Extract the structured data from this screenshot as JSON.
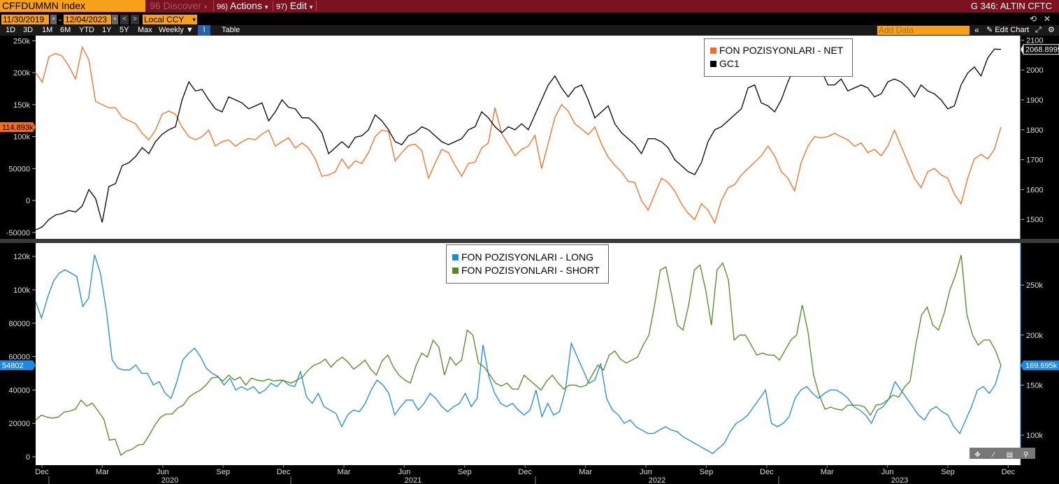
{
  "header": {
    "ticker": "CFFDUMMN Index",
    "discover_label": "Discover",
    "discover_num": "96",
    "actions_num": "96)",
    "actions_label": "Actions",
    "edit_num": "97)",
    "edit_label": "Edit",
    "window_title": "G 346: ALTIN CFTC"
  },
  "controls": {
    "start_date": "11/30/2019",
    "end_date": "12/04/2023",
    "currency": "Local CCY",
    "periods": [
      "1D",
      "3D",
      "1M",
      "6M",
      "YTD",
      "1Y",
      "5Y",
      "Max"
    ],
    "frequency": "Weekly",
    "table_label": "Table",
    "add_data_placeholder": "Add Data",
    "edit_chart_label": "Edit Chart"
  },
  "colors": {
    "orange": "#f36c21",
    "black_line": "#000000",
    "blue": "#1e88e5",
    "green": "#4f8a1e",
    "ticker_bg": "#f7a01c",
    "header_bg": "#7a1220"
  },
  "chart_data": [
    {
      "type": "line",
      "x_ticks": [
        "Dec",
        "Mar",
        "Jun",
        "Sep",
        "Dec",
        "Mar",
        "Jun",
        "Sep",
        "Dec",
        "Mar",
        "Jun",
        "Sep",
        "Dec",
        "Mar",
        "Jun",
        "Sep",
        "Dec"
      ],
      "years": [
        "2020",
        "2021",
        "2022",
        "2023"
      ],
      "left_axis": {
        "ticks": [
          "250k",
          "200k",
          "150k",
          "100k",
          "50000",
          "0",
          "-50000"
        ],
        "tick_values": [
          250000,
          200000,
          150000,
          100000,
          50000,
          0,
          -50000
        ],
        "range": [
          -60000,
          258000
        ],
        "last_value_label": "114.893k"
      },
      "right_axis": {
        "ticks": [
          "2100",
          "2000",
          "1900",
          "1800",
          "1700",
          "1600",
          "1500"
        ],
        "tick_values": [
          2100,
          2000,
          1900,
          1800,
          1700,
          1600,
          1500
        ],
        "range": [
          1435,
          2115
        ],
        "last_value_label": "2068.8999"
      },
      "series": [
        {
          "name": "FON POZISYONLARI - NET",
          "axis": "left",
          "color": "#f36c21",
          "values": [
            200000,
            185000,
            225000,
            230000,
            226000,
            210000,
            190000,
            240000,
            220000,
            155000,
            150000,
            145000,
            145000,
            130000,
            125000,
            120000,
            105000,
            95000,
            110000,
            135000,
            140000,
            135000,
            115000,
            100000,
            95000,
            100000,
            110000,
            85000,
            92000,
            95000,
            85000,
            92000,
            97000,
            95000,
            104000,
            110000,
            85000,
            92000,
            98000,
            82000,
            90000,
            82000,
            65000,
            38000,
            40000,
            45000,
            65000,
            50000,
            62000,
            58000,
            75000,
            100000,
            110000,
            108000,
            62000,
            75000,
            86000,
            88000,
            78000,
            35000,
            58000,
            80000,
            75000,
            55000,
            38000,
            58000,
            60000,
            82000,
            90000,
            145000,
            105000,
            88000,
            70000,
            80000,
            85000,
            102000,
            50000,
            90000,
            130000,
            150000,
            140000,
            120000,
            112000,
            103000,
            115000,
            88000,
            68000,
            55000,
            45000,
            30000,
            28000,
            0,
            -15000,
            10000,
            35000,
            28000,
            15000,
            -5000,
            -20000,
            -30000,
            -5000,
            -15000,
            -35000,
            0,
            20000,
            25000,
            40000,
            50000,
            60000,
            70000,
            85000,
            70000,
            45000,
            35000,
            15000,
            60000,
            85000,
            100000,
            98000,
            100000,
            105000,
            100000,
            95000,
            85000,
            90000,
            75000,
            80000,
            70000,
            85000,
            110000,
            85000,
            60000,
            35000,
            20000,
            45000,
            50000,
            40000,
            35000,
            10000,
            -5000,
            35000,
            65000,
            72000,
            65000,
            80000,
            114893
          ]
        },
        {
          "name": "GC1",
          "axis": "right",
          "color": "#000000",
          "values": [
            1465,
            1475,
            1500,
            1515,
            1520,
            1530,
            1525,
            1545,
            1600,
            1570,
            1490,
            1610,
            1620,
            1680,
            1690,
            1710,
            1740,
            1720,
            1760,
            1785,
            1800,
            1810,
            1900,
            1960,
            1930,
            1935,
            1900,
            1870,
            1860,
            1910,
            1900,
            1890,
            1870,
            1880,
            1890,
            1830,
            1860,
            1900,
            1875,
            1870,
            1840,
            1840,
            1820,
            1790,
            1720,
            1740,
            1760,
            1740,
            1775,
            1780,
            1800,
            1850,
            1830,
            1800,
            1760,
            1750,
            1780,
            1790,
            1810,
            1800,
            1780,
            1760,
            1750,
            1760,
            1770,
            1800,
            1810,
            1860,
            1840,
            1810,
            1790,
            1810,
            1800,
            1820,
            1800,
            1850,
            1900,
            1950,
            1980,
            1940,
            1910,
            1940,
            1950,
            1900,
            1840,
            1860,
            1880,
            1820,
            1790,
            1770,
            1750,
            1720,
            1770,
            1770,
            1760,
            1740,
            1700,
            1680,
            1660,
            1650,
            1690,
            1760,
            1800,
            1810,
            1830,
            1850,
            1870,
            1940,
            1950,
            1890,
            1880,
            1860,
            1900,
            1960,
            2010,
            1990,
            2010,
            1990,
            2000,
            1950,
            1950,
            1970,
            1930,
            1940,
            1950,
            1940,
            1910,
            1920,
            1960,
            1970,
            1960,
            1940,
            1910,
            1950,
            1930,
            1920,
            1900,
            1870,
            1880,
            1950,
            1990,
            2010,
            1980,
            2040,
            2070,
            2068.8999
          ]
        }
      ],
      "legend_position": "top-right"
    },
    {
      "type": "line",
      "x_ticks": [
        "Dec",
        "Mar",
        "Jun",
        "Sep",
        "Dec",
        "Mar",
        "Jun",
        "Sep",
        "Dec",
        "Mar",
        "Jun",
        "Sep",
        "Dec",
        "Mar",
        "Jun",
        "Sep",
        "Dec"
      ],
      "years": [
        "2020",
        "2021",
        "2022",
        "2023"
      ],
      "left_axis": {
        "ticks": [
          "120k",
          "100k",
          "80000",
          "60000",
          "40000",
          "20000",
          "0"
        ],
        "tick_values": [
          120000,
          100000,
          80000,
          60000,
          40000,
          20000,
          0
        ],
        "range": [
          -5000,
          128000
        ],
        "last_value_label": "54802"
      },
      "right_axis": {
        "ticks": [
          "250k",
          "200k",
          "150k",
          "100k"
        ],
        "tick_values": [
          250000,
          200000,
          150000,
          100000
        ],
        "range": [
          70000,
          292000
        ],
        "last_value_label": "169.695k"
      },
      "series": [
        {
          "name": "FON POZISYONLARI - LONG",
          "axis": "left",
          "color": "#1e88e5",
          "values": [
            93000,
            83000,
            95000,
            105000,
            110000,
            112000,
            110000,
            108000,
            90000,
            95000,
            121000,
            110000,
            88000,
            58000,
            53000,
            52000,
            52000,
            55000,
            50000,
            50000,
            43000,
            45000,
            38000,
            35000,
            45000,
            58000,
            62000,
            65000,
            60000,
            53000,
            50000,
            48000,
            43000,
            47000,
            40000,
            42000,
            40000,
            42000,
            38000,
            40000,
            44000,
            42000,
            46000,
            43000,
            42000,
            51000,
            36000,
            32000,
            38000,
            30000,
            28000,
            26000,
            18000,
            25000,
            28000,
            27000,
            32000,
            40000,
            46000,
            43000,
            38000,
            25000,
            30000,
            34000,
            34000,
            28000,
            32000,
            38000,
            35000,
            30000,
            27000,
            30000,
            32000,
            38000,
            30000,
            35000,
            67000,
            48000,
            38000,
            32000,
            30000,
            32000,
            28000,
            25000,
            28000,
            40000,
            24000,
            32000,
            25000,
            27000,
            40000,
            68000,
            60000,
            52000,
            44000,
            46000,
            56000,
            35000,
            28000,
            25000,
            20000,
            22000,
            18000,
            16000,
            14000,
            14000,
            16000,
            18000,
            16000,
            15000,
            12000,
            10000,
            8000,
            6000,
            4000,
            2000,
            5000,
            8000,
            15000,
            20000,
            22000,
            25000,
            30000,
            35000,
            40000,
            20000,
            18000,
            20000,
            24000,
            35000,
            40000,
            42000,
            38000,
            35000,
            38000,
            40000,
            40000,
            38000,
            35000,
            30000,
            28000,
            25000,
            20000,
            28000,
            30000,
            35000,
            45000,
            40000,
            35000,
            30000,
            25000,
            22000,
            28000,
            30000,
            27000,
            25000,
            18000,
            14000,
            22000,
            30000,
            40000,
            42000,
            38000,
            43000,
            54802
          ]
        },
        {
          "name": "FON POZISYONLARI - SHORT",
          "axis": "right",
          "color": "#4f8a1e",
          "values": [
            115000,
            120000,
            118000,
            117000,
            118000,
            123000,
            124000,
            126000,
            135000,
            129000,
            132000,
            124000,
            116000,
            95000,
            96000,
            80000,
            84000,
            86000,
            90000,
            91000,
            100000,
            110000,
            118000,
            121000,
            121000,
            127000,
            130000,
            138000,
            142000,
            145000,
            150000,
            157000,
            158000,
            154000,
            160000,
            155000,
            158000,
            150000,
            157000,
            155000,
            154000,
            156000,
            154000,
            155000,
            154000,
            152000,
            155000,
            158000,
            165000,
            170000,
            172000,
            176000,
            168000,
            174000,
            178000,
            173000,
            166000,
            170000,
            175000,
            166000,
            160000,
            174000,
            180000,
            168000,
            160000,
            155000,
            152000,
            170000,
            182000,
            178000,
            195000,
            188000,
            160000,
            178000,
            170000,
            175000,
            205000,
            200000,
            172000,
            168000,
            160000,
            152000,
            149000,
            152000,
            146000,
            146000,
            160000,
            155000,
            150000,
            145000,
            154000,
            160000,
            152000,
            146000,
            150000,
            150000,
            148000,
            150000,
            160000,
            170000,
            165000,
            180000,
            184000,
            176000,
            172000,
            175000,
            178000,
            190000,
            200000,
            230000,
            265000,
            268000,
            240000,
            210000,
            205000,
            230000,
            265000,
            270000,
            245000,
            210000,
            265000,
            272000,
            255000,
            195000,
            200000,
            200000,
            190000,
            180000,
            182000,
            180000,
            180000,
            175000,
            185000,
            195000,
            200000,
            230000,
            204000,
            160000,
            140000,
            126000,
            128000,
            126000,
            125000,
            130000,
            130000,
            130000,
            128000,
            120000,
            130000,
            131000,
            135000,
            140000,
            138000,
            148000,
            154000,
            190000,
            220000,
            228000,
            210000,
            205000,
            222000,
            245000,
            260000,
            280000,
            220000,
            200000,
            190000,
            195000,
            195000,
            185000,
            169695
          ]
        }
      ],
      "legend_position": "top-center"
    }
  ]
}
